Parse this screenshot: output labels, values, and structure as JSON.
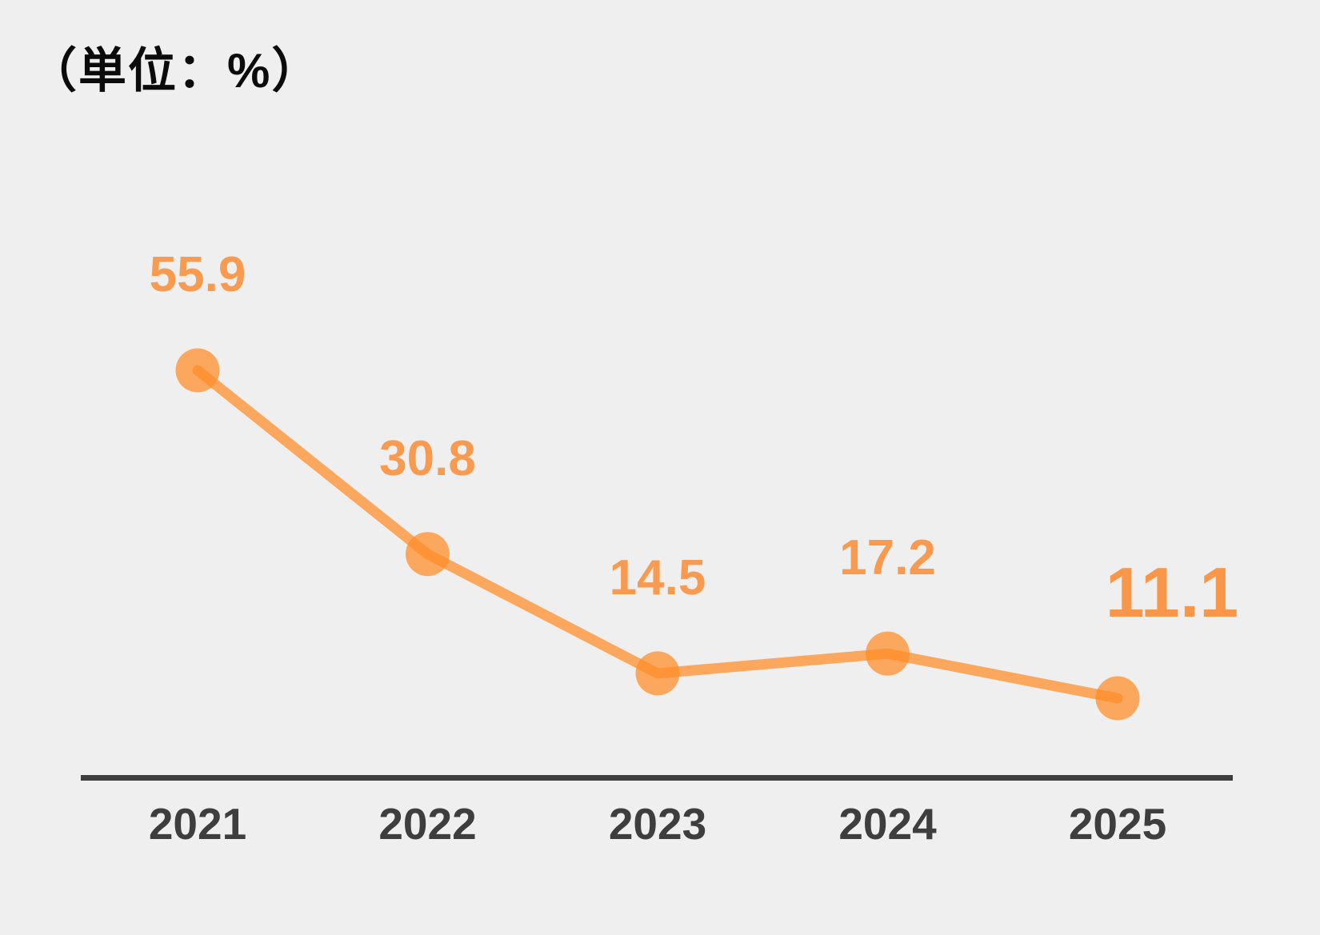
{
  "unit_label": "（単位：%）",
  "colors": {
    "background": "#F0EFEF",
    "accent_orange": "#FF8C26",
    "value_label_orange": "#F89B50",
    "axis_dark_gray": "#3E3E3E"
  },
  "chart_data": {
    "type": "line",
    "title": "",
    "subtitle_unit": "（単位：%）",
    "categories": [
      "2021",
      "2022",
      "2023",
      "2024",
      "2025"
    ],
    "values": [
      55.9,
      30.8,
      14.5,
      17.2,
      11.1
    ],
    "data_labels": [
      "55.9",
      "30.8",
      "14.5",
      "17.2",
      "11.1"
    ],
    "xlabel": "",
    "ylabel": "%",
    "ylim": [
      0,
      62
    ],
    "grid": false,
    "legend": false,
    "marker": "circle",
    "emphasized_point_index": 4,
    "emphasized_point_label": "11.1"
  }
}
